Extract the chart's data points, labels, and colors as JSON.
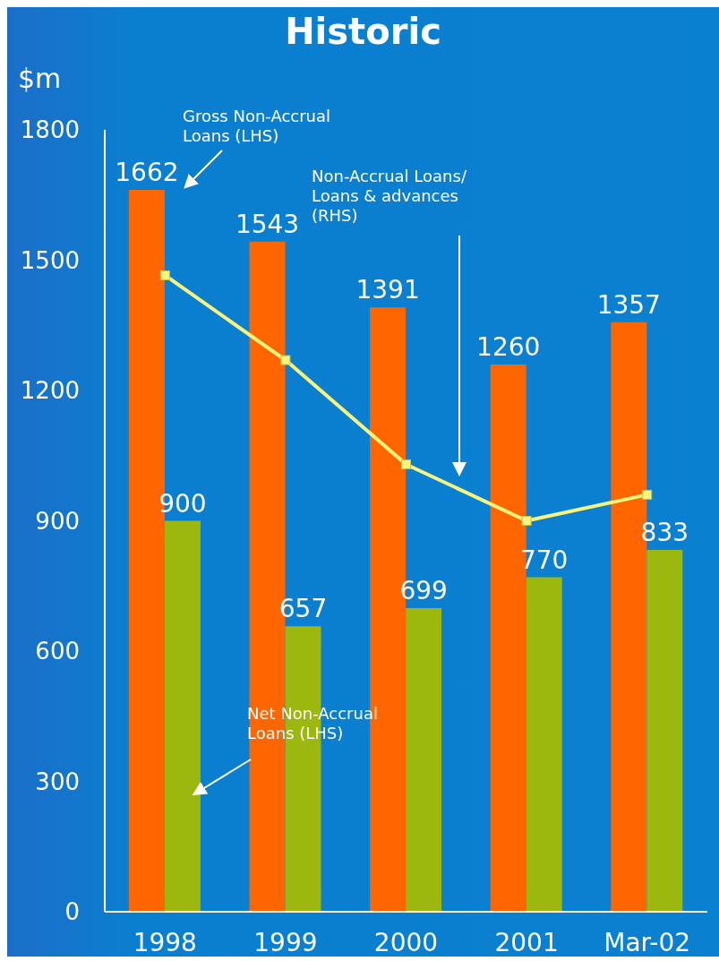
{
  "chart_data": {
    "type": "bar",
    "title": "Historic",
    "ylabel": "$m",
    "categories": [
      "1998",
      "1999",
      "2000",
      "2001",
      "Mar-02"
    ],
    "series": [
      {
        "name": "Gross Non-Accrual Loans (LHS)",
        "color": "#ff6600",
        "values": [
          1662,
          1543,
          1391,
          1260,
          1357
        ],
        "value_labels": [
          "1662",
          "1543",
          "1391",
          "1260",
          "1357"
        ]
      },
      {
        "name": "Net Non-Accrual Loans (LHS)",
        "color": "#9cb80e",
        "values": [
          900,
          657,
          699,
          770,
          833
        ],
        "value_labels": [
          "900",
          "657",
          "699",
          "770",
          "833"
        ]
      },
      {
        "name": "Non-Accrual Loans/ Loans & advances (RHS)",
        "type": "line",
        "color": "#f8f47c",
        "values": [
          1465,
          1270,
          1030,
          900,
          960
        ],
        "marker": "square"
      }
    ],
    "ylim": [
      0,
      1800
    ],
    "yticks": [
      0,
      300,
      600,
      900,
      1200,
      1500,
      1800
    ]
  }
}
